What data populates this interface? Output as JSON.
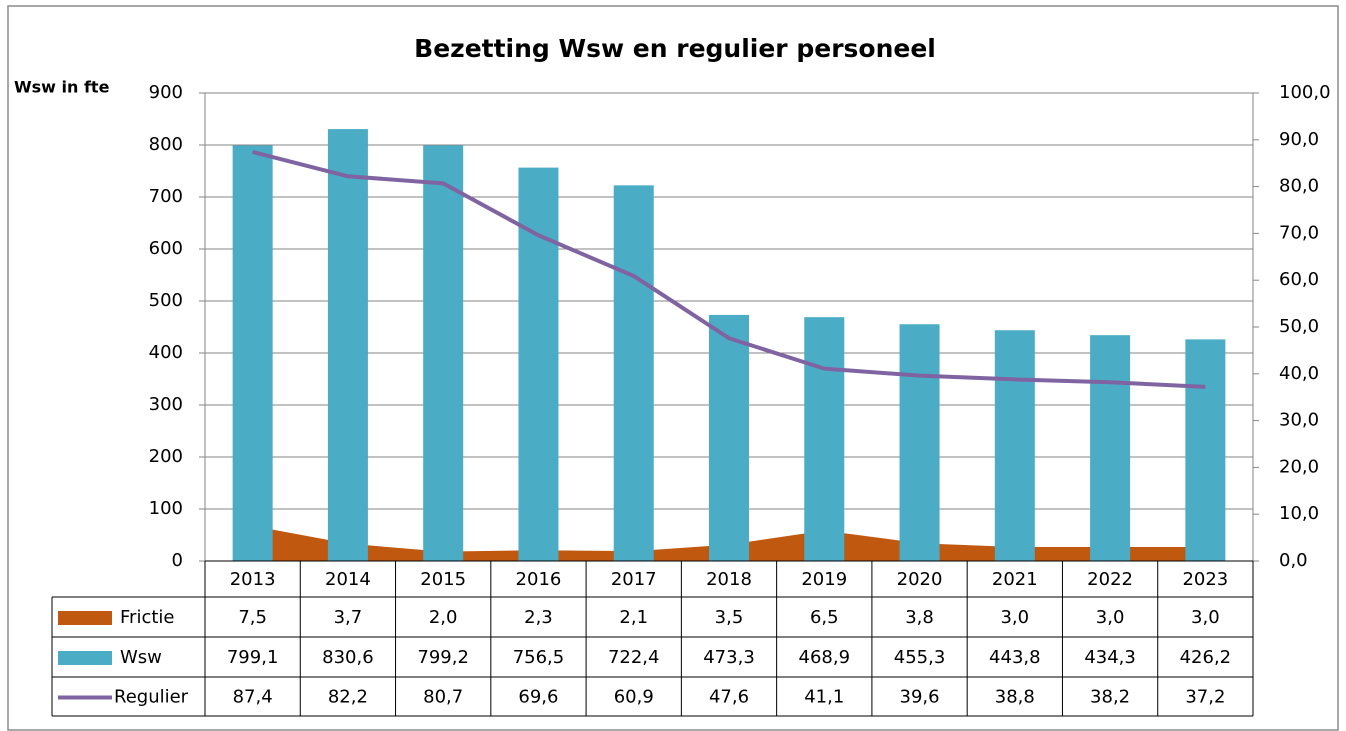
{
  "chart_data": {
    "type": "bar",
    "title": "Bezetting Wsw en regulier personeel",
    "y_label": "Wsw in fte",
    "categories": [
      "2013",
      "2014",
      "2015",
      "2016",
      "2017",
      "2018",
      "2019",
      "2020",
      "2021",
      "2022",
      "2023"
    ],
    "ylim": [
      0,
      900
    ],
    "yticks": [
      0,
      100,
      200,
      300,
      400,
      500,
      600,
      700,
      800,
      900
    ],
    "y2lim": [
      0,
      100
    ],
    "y2ticks": [
      {
        "value": 0,
        "label": "0,0"
      },
      {
        "value": 10,
        "label": "10,0"
      },
      {
        "value": 20,
        "label": "20,0"
      },
      {
        "value": 30,
        "label": "30,0"
      },
      {
        "value": 40,
        "label": "40,0"
      },
      {
        "value": 50,
        "label": "50,0"
      },
      {
        "value": 60,
        "label": "60,0"
      },
      {
        "value": 70,
        "label": "70,0"
      },
      {
        "value": 80,
        "label": "80,0"
      },
      {
        "value": 90,
        "label": "90,0"
      },
      {
        "value": 100,
        "label": "100,0"
      }
    ],
    "grid": true,
    "series": [
      {
        "name": "Frictie",
        "type": "area",
        "axis": "y2",
        "color": "#c0580f",
        "values": [
          7.5,
          3.7,
          2.0,
          2.3,
          2.1,
          3.5,
          6.5,
          3.8,
          3.0,
          3.0,
          3.0
        ],
        "value_labels": [
          "7,5",
          "3,7",
          "2,0",
          "2,3",
          "2,1",
          "3,5",
          "6,5",
          "3,8",
          "3,0",
          "3,0",
          "3,0"
        ]
      },
      {
        "name": "Wsw",
        "type": "bar",
        "color": "#4bacc6",
        "values": [
          799.1,
          830.6,
          799.2,
          756.5,
          722.4,
          473.3,
          468.9,
          455.3,
          443.8,
          434.3,
          426.2
        ],
        "value_labels": [
          "799,1",
          "830,6",
          "799,2",
          "756,5",
          "722,4",
          "473,3",
          "468,9",
          "455,3",
          "443,8",
          "434,3",
          "426,2"
        ]
      },
      {
        "name": "Regulier",
        "type": "line",
        "axis": "y2",
        "color": "#8064a2",
        "values": [
          87.4,
          82.2,
          80.7,
          69.6,
          60.9,
          47.6,
          41.1,
          39.6,
          38.8,
          38.2,
          37.2
        ],
        "value_labels": [
          "87,4",
          "82,2",
          "80,7",
          "69,6",
          "60,9",
          "47,6",
          "41,1",
          "39,6",
          "38,8",
          "38,2",
          "37,2"
        ]
      }
    ]
  }
}
